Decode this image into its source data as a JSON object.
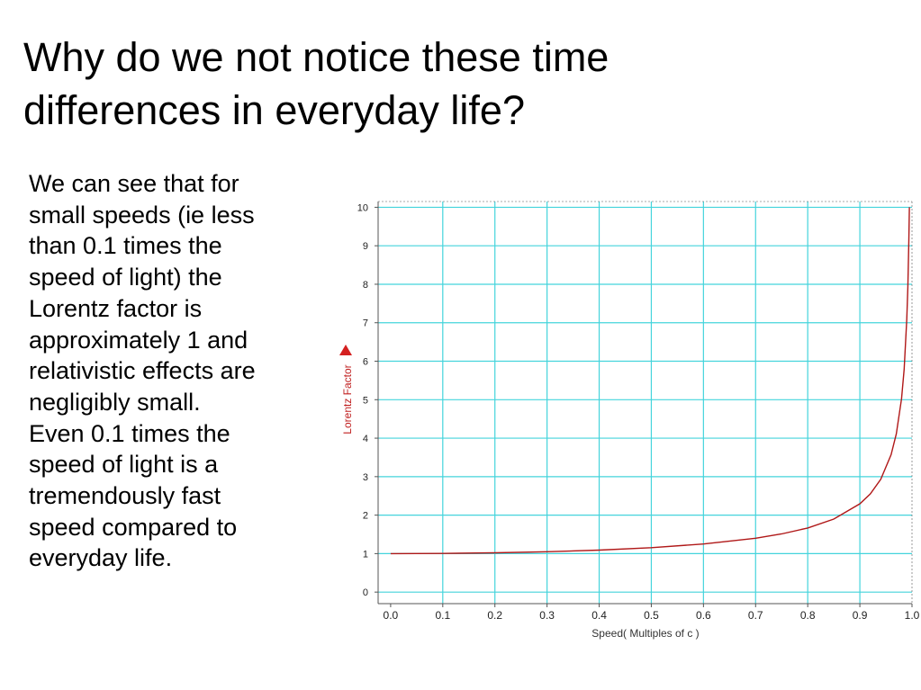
{
  "slide": {
    "title_lines": [
      "Why do we not notice these time",
      "differences in everyday life?"
    ],
    "body_lines": [
      "We can see that for",
      "small speeds (ie less",
      "than 0.1 times the",
      "speed of light) the",
      "Lorentz factor is",
      "approximately 1 and",
      "relativistic effects are",
      "negligibly small.",
      "Even 0.1 times the",
      "speed of light is a",
      "tremendously fast",
      "speed compared to",
      "everyday life."
    ]
  },
  "chart_data": {
    "type": "line",
    "title": "",
    "xlabel": "Speed( Multiples of c )",
    "ylabel": "Lorentz Factor",
    "xlim": [
      0.0,
      1.0
    ],
    "ylim": [
      0,
      10
    ],
    "x_ticks": [
      "0.0",
      "0.1",
      "0.2",
      "0.3",
      "0.4",
      "0.5",
      "0.6",
      "0.7",
      "0.8",
      "0.9",
      "1.0"
    ],
    "y_ticks": [
      "0",
      "1",
      "2",
      "3",
      "4",
      "5",
      "6",
      "7",
      "8",
      "9",
      "10"
    ],
    "grid": true,
    "colors": {
      "grid": "#44d4dc",
      "curve": "#b01818",
      "axis_label": "#c02020",
      "tick_label": "#222222",
      "axis": "#555555"
    },
    "series": [
      {
        "x": [
          0.0,
          0.1,
          0.2,
          0.3,
          0.4,
          0.5,
          0.6,
          0.7,
          0.75,
          0.8,
          0.85,
          0.9,
          0.92,
          0.94,
          0.96,
          0.97,
          0.98,
          0.985,
          0.99,
          0.992,
          0.994,
          0.995
        ],
        "y": [
          1.0,
          1.005,
          1.021,
          1.048,
          1.091,
          1.155,
          1.25,
          1.4,
          1.512,
          1.667,
          1.898,
          2.294,
          2.552,
          2.931,
          3.571,
          4.113,
          5.025,
          5.795,
          7.089,
          7.921,
          9.142,
          10.0
        ]
      }
    ]
  }
}
